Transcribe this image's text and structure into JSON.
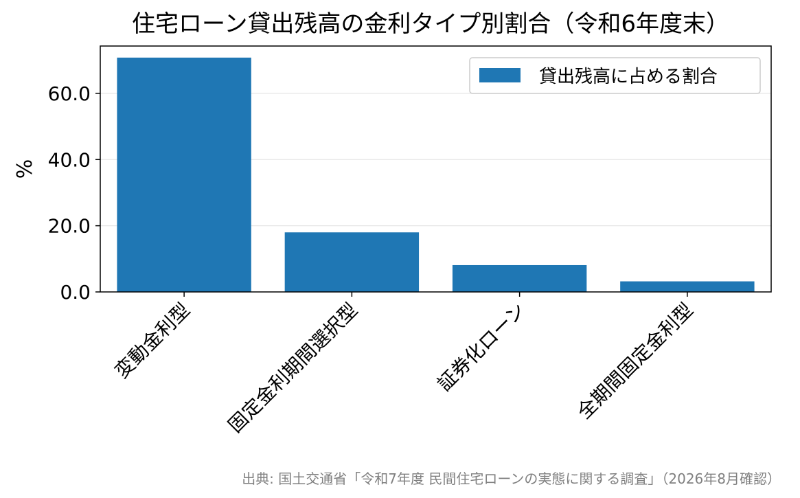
{
  "chart_data": {
    "type": "bar",
    "title": "住宅ローン貸出残高の金利タイプ別割合（令和6年度末）",
    "xlabel": "",
    "ylabel": "%",
    "categories": [
      "変動金利型",
      "固定金利期間選択型",
      "証券化ローン",
      "全期間固定金利型"
    ],
    "series": [
      {
        "name": "貸出残高に占める割合",
        "values": [
          70.8,
          18.0,
          8.1,
          3.2
        ]
      }
    ],
    "yticks": [
      "0.0",
      "20.0",
      "40.0",
      "60.0"
    ],
    "ylim": [
      0,
      74.3
    ],
    "grid": "y",
    "legend_position": "top-right",
    "colors": {
      "bar": "#1f77b4",
      "grid": "#e6e6e6",
      "source": "#808080"
    }
  },
  "source_note": "出典: 国土交通省「令和7年度 民間住宅ローンの実態に関する調査」（2026年8月確認）"
}
